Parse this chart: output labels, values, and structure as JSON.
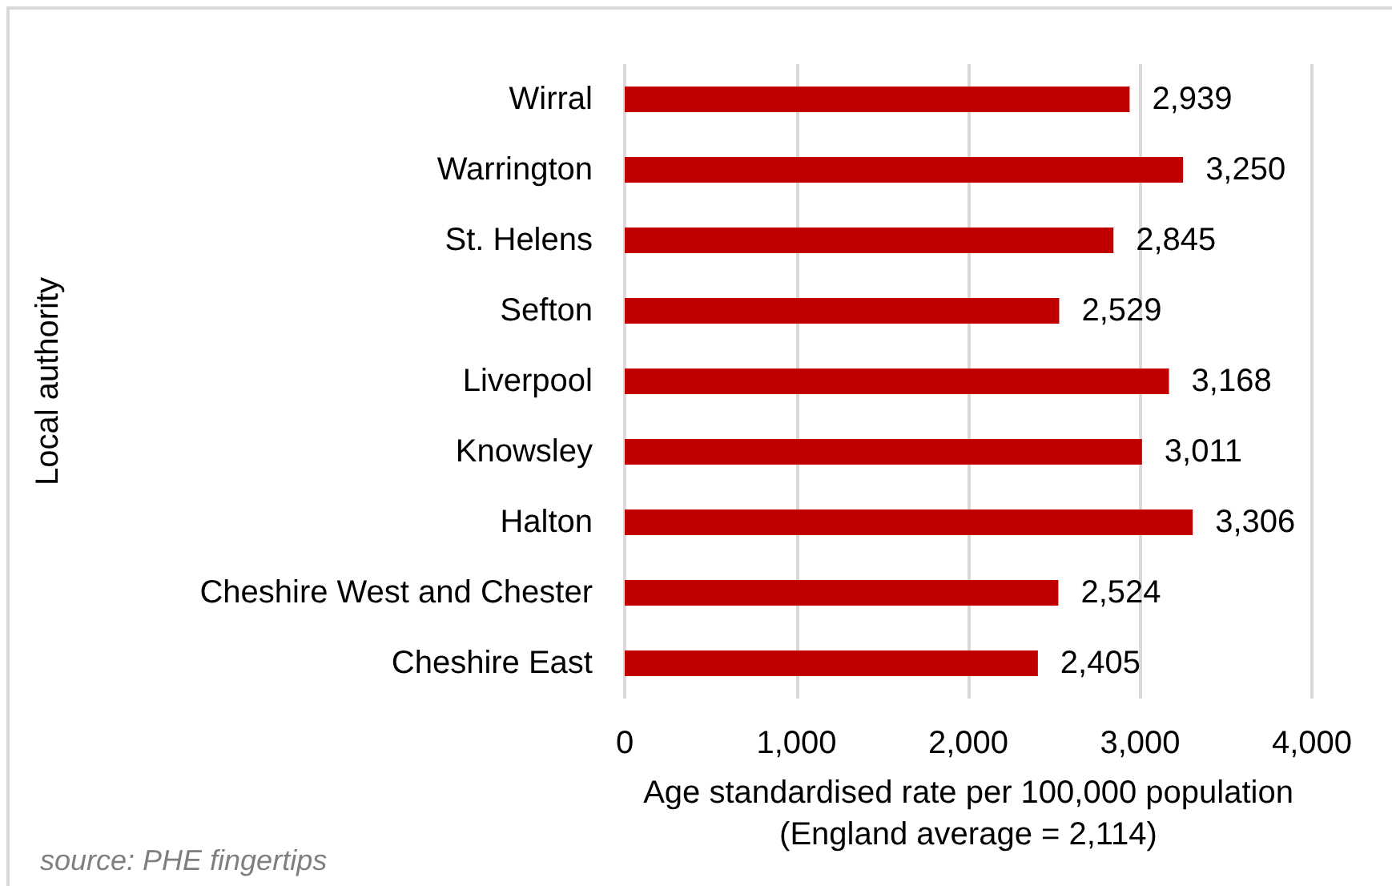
{
  "chart_data": {
    "type": "bar",
    "orientation": "horizontal",
    "categories": [
      "Wirral",
      "Warrington",
      "St. Helens",
      "Sefton",
      "Liverpool",
      "Knowsley",
      "Halton",
      "Cheshire West and Chester",
      "Cheshire East"
    ],
    "values": [
      2939,
      3250,
      2845,
      2529,
      3168,
      3011,
      3306,
      2524,
      2405
    ],
    "color": "#c00000",
    "value_labels": [
      "2,939",
      "3,250",
      "2,845",
      "2,529",
      "3,168",
      "3,011",
      "3,306",
      "2,524",
      "2,405"
    ],
    "xlabel": "Age standardised rate per 100,000 population\n(England average = 2,114)",
    "ylabel": "Local authority",
    "xlim": [
      0,
      4000
    ],
    "xticks": [
      0,
      {
        "value": 1000,
        "label": "1,000"
      },
      {
        "value": 2000,
        "label": "2,000"
      },
      {
        "value": 3000,
        "label": "3,000"
      },
      {
        "value": 4000,
        "label": "4,000"
      }
    ],
    "grid": "x",
    "annotations": [
      "source: PHE fingertips"
    ]
  }
}
